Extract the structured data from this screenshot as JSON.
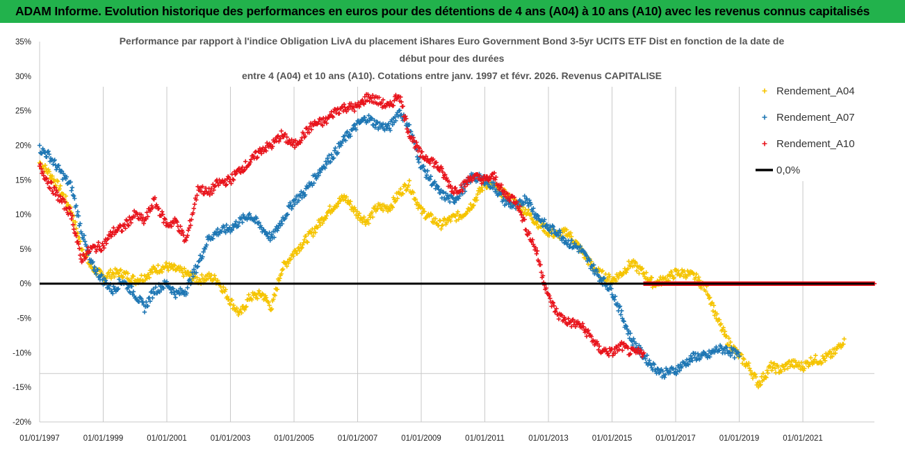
{
  "header": {
    "title": "ADAM Informe. Evolution historique des performances en euros pour des détentions de 4 ans (A04) à 10 ans (A10) avec les revenus connus capitalisés"
  },
  "chart_data": {
    "type": "scatter",
    "title_lines": [
      "Performance par rapport à l'indice Obligation LivA  du placement iShares Euro Government Bond 3-5yr UCITS ETF Dist en fonction de la date de",
      "début pour des durées",
      "entre 4 (A04) et 10 ans (A10).  Cotations entre janv. 1997 et févr. 2026. Revenus CAPITALISE"
    ],
    "x_tick_labels": [
      "01/01/1997",
      "01/01/1999",
      "01/01/2001",
      "01/01/2003",
      "01/01/2005",
      "01/01/2007",
      "01/01/2009",
      "01/01/2011",
      "01/01/2013",
      "01/01/2015",
      "01/01/2017",
      "01/01/2019",
      "01/01/2021"
    ],
    "x_range": [
      1997.0,
      2023.25
    ],
    "y_tick_labels": [
      "35%",
      "30%",
      "25%",
      "20%",
      "15%",
      "10%",
      "5%",
      "0%",
      "-5%",
      "-10%",
      "-15%",
      "-20%"
    ],
    "ylim": [
      -20,
      35
    ],
    "legend": [
      {
        "label": "Rendement_A04",
        "color": "#f5c400",
        "marker": "+"
      },
      {
        "label": "Rendement_A07",
        "color": "#1f77b4",
        "marker": "+"
      },
      {
        "label": "Rendement_A10",
        "color": "#e8141c",
        "marker": "+"
      },
      {
        "label": "0,0%",
        "color": "#000000",
        "marker": "line"
      }
    ],
    "series": [
      {
        "name": "Rendement_A04",
        "color": "#f5c400",
        "x": [
          1997.0,
          1997.3,
          1997.6,
          1998.0,
          1998.3,
          1998.6,
          1999.0,
          1999.3,
          1999.6,
          2000.0,
          2000.3,
          2000.6,
          2001.0,
          2001.3,
          2001.6,
          2002.0,
          2002.3,
          2002.6,
          2003.0,
          2003.3,
          2003.6,
          2004.0,
          2004.3,
          2004.6,
          2005.0,
          2005.3,
          2005.6,
          2006.0,
          2006.3,
          2006.6,
          2007.0,
          2007.3,
          2007.6,
          2008.0,
          2008.3,
          2008.6,
          2009.0,
          2009.3,
          2009.6,
          2010.0,
          2010.3,
          2010.6,
          2011.0,
          2011.3,
          2011.6,
          2012.0,
          2012.3,
          2012.6,
          2013.0,
          2013.3,
          2013.6,
          2014.0,
          2014.3,
          2014.6,
          2015.0,
          2015.3,
          2015.6,
          2016.0,
          2016.3,
          2016.6,
          2017.0,
          2017.3,
          2017.6,
          2018.0,
          2018.3,
          2018.6,
          2019.0,
          2019.3,
          2019.6,
          2020.0,
          2020.3,
          2020.6,
          2021.0,
          2021.3,
          2021.6,
          2022.0,
          2022.3
        ],
        "y": [
          17.5,
          16.0,
          14.0,
          10.5,
          5.5,
          2.5,
          1.0,
          1.5,
          1.5,
          0.5,
          1.0,
          2.0,
          2.5,
          2.0,
          1.5,
          0.5,
          1.0,
          0.5,
          -2.5,
          -4.5,
          -2.0,
          -1.5,
          -3.5,
          2.0,
          4.5,
          6.0,
          7.5,
          10.0,
          11.5,
          12.5,
          10.0,
          9.0,
          11.0,
          11.0,
          13.0,
          14.5,
          10.5,
          9.5,
          8.5,
          9.5,
          10.0,
          11.5,
          14.5,
          14.0,
          13.0,
          11.5,
          10.5,
          9.0,
          7.5,
          7.0,
          7.5,
          5.0,
          3.0,
          1.5,
          0.5,
          1.5,
          3.0,
          1.5,
          0.0,
          0.5,
          1.5,
          1.5,
          1.0,
          -1.0,
          -5.0,
          -8.0,
          -10.5,
          -12.0,
          -14.5,
          -12.0,
          -12.5,
          -11.5,
          -12.0,
          -11.0,
          -11.0,
          -10.0,
          -8.0
        ]
      },
      {
        "name": "Rendement_A07",
        "color": "#1f77b4",
        "x": [
          1997.0,
          1997.3,
          1997.6,
          1998.0,
          1998.3,
          1998.6,
          1999.0,
          1999.3,
          1999.6,
          2000.0,
          2000.3,
          2000.6,
          2001.0,
          2001.3,
          2001.6,
          2002.0,
          2002.3,
          2002.6,
          2003.0,
          2003.3,
          2003.6,
          2004.0,
          2004.3,
          2004.6,
          2005.0,
          2005.3,
          2005.6,
          2006.0,
          2006.3,
          2006.6,
          2007.0,
          2007.3,
          2007.6,
          2008.0,
          2008.3,
          2008.6,
          2009.0,
          2009.3,
          2009.6,
          2010.0,
          2010.3,
          2010.6,
          2011.0,
          2011.3,
          2011.6,
          2012.0,
          2012.3,
          2012.6,
          2013.0,
          2013.3,
          2013.6,
          2014.0,
          2014.3,
          2014.6,
          2015.0,
          2015.3,
          2015.6,
          2016.0,
          2016.3,
          2016.6,
          2017.0,
          2017.3,
          2017.6,
          2018.0,
          2018.3,
          2018.6,
          2019.0
        ],
        "y": [
          19.5,
          18.5,
          16.5,
          14.0,
          8.0,
          3.0,
          0.5,
          -1.0,
          0.5,
          -1.5,
          -3.5,
          -1.0,
          0.0,
          -1.5,
          -1.0,
          3.0,
          6.5,
          7.5,
          8.0,
          9.0,
          10.0,
          8.0,
          6.5,
          9.0,
          12.0,
          13.0,
          15.0,
          17.5,
          19.0,
          21.0,
          23.0,
          24.0,
          23.0,
          22.5,
          25.0,
          23.0,
          17.0,
          15.0,
          13.0,
          12.0,
          13.5,
          15.5,
          15.0,
          14.0,
          12.0,
          11.0,
          12.5,
          10.0,
          8.0,
          7.5,
          6.0,
          5.0,
          3.0,
          1.0,
          -1.0,
          -4.5,
          -8.0,
          -10.5,
          -12.0,
          -13.0,
          -12.5,
          -11.5,
          -10.5,
          -10.5,
          -9.5,
          -9.5,
          -10.5
        ]
      },
      {
        "name": "Rendement_A10",
        "color": "#e8141c",
        "x": [
          1997.0,
          1997.3,
          1997.6,
          1998.0,
          1998.3,
          1998.6,
          1999.0,
          1999.3,
          1999.6,
          2000.0,
          2000.3,
          2000.6,
          2001.0,
          2001.3,
          2001.6,
          2002.0,
          2002.3,
          2002.6,
          2003.0,
          2003.3,
          2003.6,
          2004.0,
          2004.3,
          2004.6,
          2005.0,
          2005.3,
          2005.6,
          2006.0,
          2006.3,
          2006.6,
          2007.0,
          2007.3,
          2007.6,
          2008.0,
          2008.3,
          2008.6,
          2009.0,
          2009.3,
          2009.6,
          2010.0,
          2010.3,
          2010.6,
          2011.0,
          2011.3,
          2011.6,
          2012.0,
          2012.3,
          2012.6,
          2013.0,
          2013.3,
          2013.6,
          2014.0,
          2014.3,
          2014.6,
          2015.0,
          2015.3,
          2015.6,
          2016.0
        ],
        "y": [
          17.0,
          14.5,
          12.5,
          10.0,
          3.5,
          5.0,
          5.5,
          7.5,
          8.0,
          10.0,
          9.0,
          12.0,
          8.5,
          9.0,
          6.0,
          14.0,
          13.0,
          14.5,
          15.0,
          16.5,
          17.5,
          19.5,
          20.0,
          21.5,
          20.0,
          21.5,
          23.0,
          23.5,
          25.0,
          25.5,
          25.5,
          27.0,
          26.5,
          25.5,
          27.5,
          22.0,
          18.5,
          18.0,
          16.5,
          13.5,
          14.0,
          15.5,
          15.0,
          15.5,
          13.0,
          12.0,
          8.0,
          5.0,
          -2.0,
          -4.5,
          -5.5,
          -6.0,
          -7.5,
          -9.5,
          -10.0,
          -9.0,
          -10.0,
          -10.0
        ]
      },
      {
        "name": "Rendement_A10_zero_tail",
        "color": "#e8141c",
        "x": [
          2016.0,
          2023.25
        ],
        "y": [
          0.0,
          0.0
        ]
      }
    ]
  }
}
